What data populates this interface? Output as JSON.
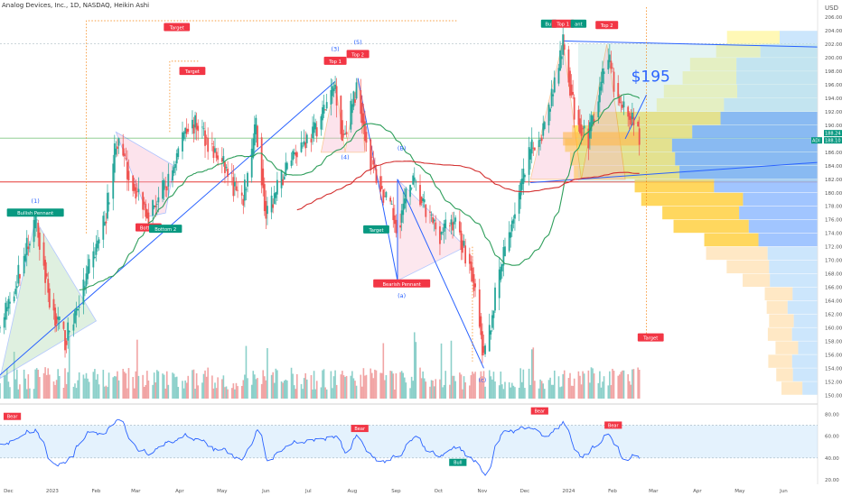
{
  "header": {
    "title": "Analog Devices, Inc., 1D, NASDAQ, Heikin Ashi",
    "currency": "USD"
  },
  "colors": {
    "up": "#26a69a",
    "down": "#ef5350",
    "label_red": "#f23645",
    "label_green": "#089981",
    "trend_blue": "#2962ff",
    "ma_green": "#2e9e5b",
    "ma_red": "#d32f2f",
    "rsi_line": "#2962ff",
    "orange": "#f57c00"
  },
  "chart_data": [
    {
      "type": "candlestick",
      "panel": "price",
      "y_ticks": [
        150,
        152,
        154,
        156,
        158,
        160,
        162,
        164,
        166,
        168,
        170,
        172,
        174,
        176,
        178,
        180,
        182,
        184,
        186,
        188,
        190,
        192,
        194,
        196,
        198,
        200,
        202,
        204,
        206
      ],
      "ylim": [
        149.5,
        207.5
      ],
      "x_ticks": [
        "Dec",
        "2023",
        "Feb",
        "Mar",
        "Apr",
        "May",
        "Jun",
        "Jul",
        "Aug",
        "Sep",
        "Oct",
        "Nov",
        "Dec",
        "2024",
        "Feb",
        "Mar",
        "Apr",
        "May",
        "Jun"
      ],
      "price_labels": [
        {
          "value": 188.24,
          "text": "188.24"
        },
        {
          "value": 188.1,
          "text": "188.10"
        },
        {
          "value": 188.1,
          "text": "ADI"
        }
      ],
      "annotations": [
        {
          "text": "(1)",
          "date": "2022-12-20",
          "price": 178.5
        },
        {
          "text": "Bullish Pennant",
          "date": "2022-12-20",
          "price": 177.0,
          "style": "label_green"
        },
        {
          "text": "Target",
          "date": "2023-03-30",
          "price": 204.5,
          "style": "label_red"
        },
        {
          "text": "Target",
          "date": "2023-04-10",
          "price": 198.0,
          "style": "label_red"
        },
        {
          "text": "Bottom",
          "date": "2023-03-10",
          "price": 174.8,
          "style": "label_red"
        },
        {
          "text": "Bottom 2",
          "date": "2023-03-22",
          "price": 174.6,
          "style": "label_green"
        },
        {
          "text": "(3)",
          "date": "2023-07-20",
          "price": 201.0
        },
        {
          "text": "Top 1",
          "date": "2023-07-20",
          "price": 199.5,
          "style": "label_red"
        },
        {
          "text": "(5)",
          "date": "2023-08-05",
          "price": 202.0
        },
        {
          "text": "Top 2",
          "date": "2023-08-05",
          "price": 200.5,
          "style": "label_red"
        },
        {
          "text": "(4)",
          "date": "2023-07-27",
          "price": 185.0
        },
        {
          "text": "Target",
          "date": "2023-10-20",
          "price": 217.5,
          "style": "label_red"
        },
        {
          "text": "Target",
          "date": "2023-08-18",
          "price": 174.5,
          "style": "label_green"
        },
        {
          "text": "(B)",
          "date": "2023-09-05",
          "price": 186.3
        },
        {
          "text": "Bearish Pennant",
          "date": "2023-09-05",
          "price": 166.5,
          "style": "label_red"
        },
        {
          "text": "(a)",
          "date": "2023-09-05",
          "price": 164.5
        },
        {
          "text": "(c)",
          "date": "2023-11-01",
          "price": 152.0
        },
        {
          "text": "Bul",
          "date": "2023-12-18",
          "price": 205.0,
          "style": "label_green"
        },
        {
          "text": "Top 1",
          "date": "2023-12-28",
          "price": 205.0,
          "style": "label_red"
        },
        {
          "text": "ant",
          "date": "2024-01-08",
          "price": 205.0,
          "style": "label_green"
        },
        {
          "text": "Top 2",
          "date": "2024-01-28",
          "price": 204.8,
          "style": "label_red"
        },
        {
          "text": "$195",
          "date": "2024-02-28",
          "price": 196.5,
          "style": "big_blue"
        },
        {
          "text": "Target",
          "date": "2024-02-28",
          "price": 158.5,
          "style": "label_red"
        }
      ]
    },
    {
      "type": "line",
      "panel": "rsi",
      "y_ticks": [
        20,
        40,
        60,
        80
      ],
      "ylim": [
        16,
        86
      ],
      "band": [
        40,
        70
      ],
      "annotations": [
        {
          "text": "Bear",
          "x_frac": 0.015,
          "value": 78,
          "style": "label_red"
        },
        {
          "text": "Bear",
          "x_frac": 0.44,
          "value": 67,
          "style": "label_red"
        },
        {
          "text": "Bull",
          "x_frac": 0.56,
          "value": 36,
          "style": "label_green"
        },
        {
          "text": "Bear",
          "x_frac": 0.66,
          "value": 83,
          "style": "label_red"
        },
        {
          "text": "Bear",
          "x_frac": 0.75,
          "value": 70,
          "style": "label_red"
        }
      ]
    }
  ]
}
